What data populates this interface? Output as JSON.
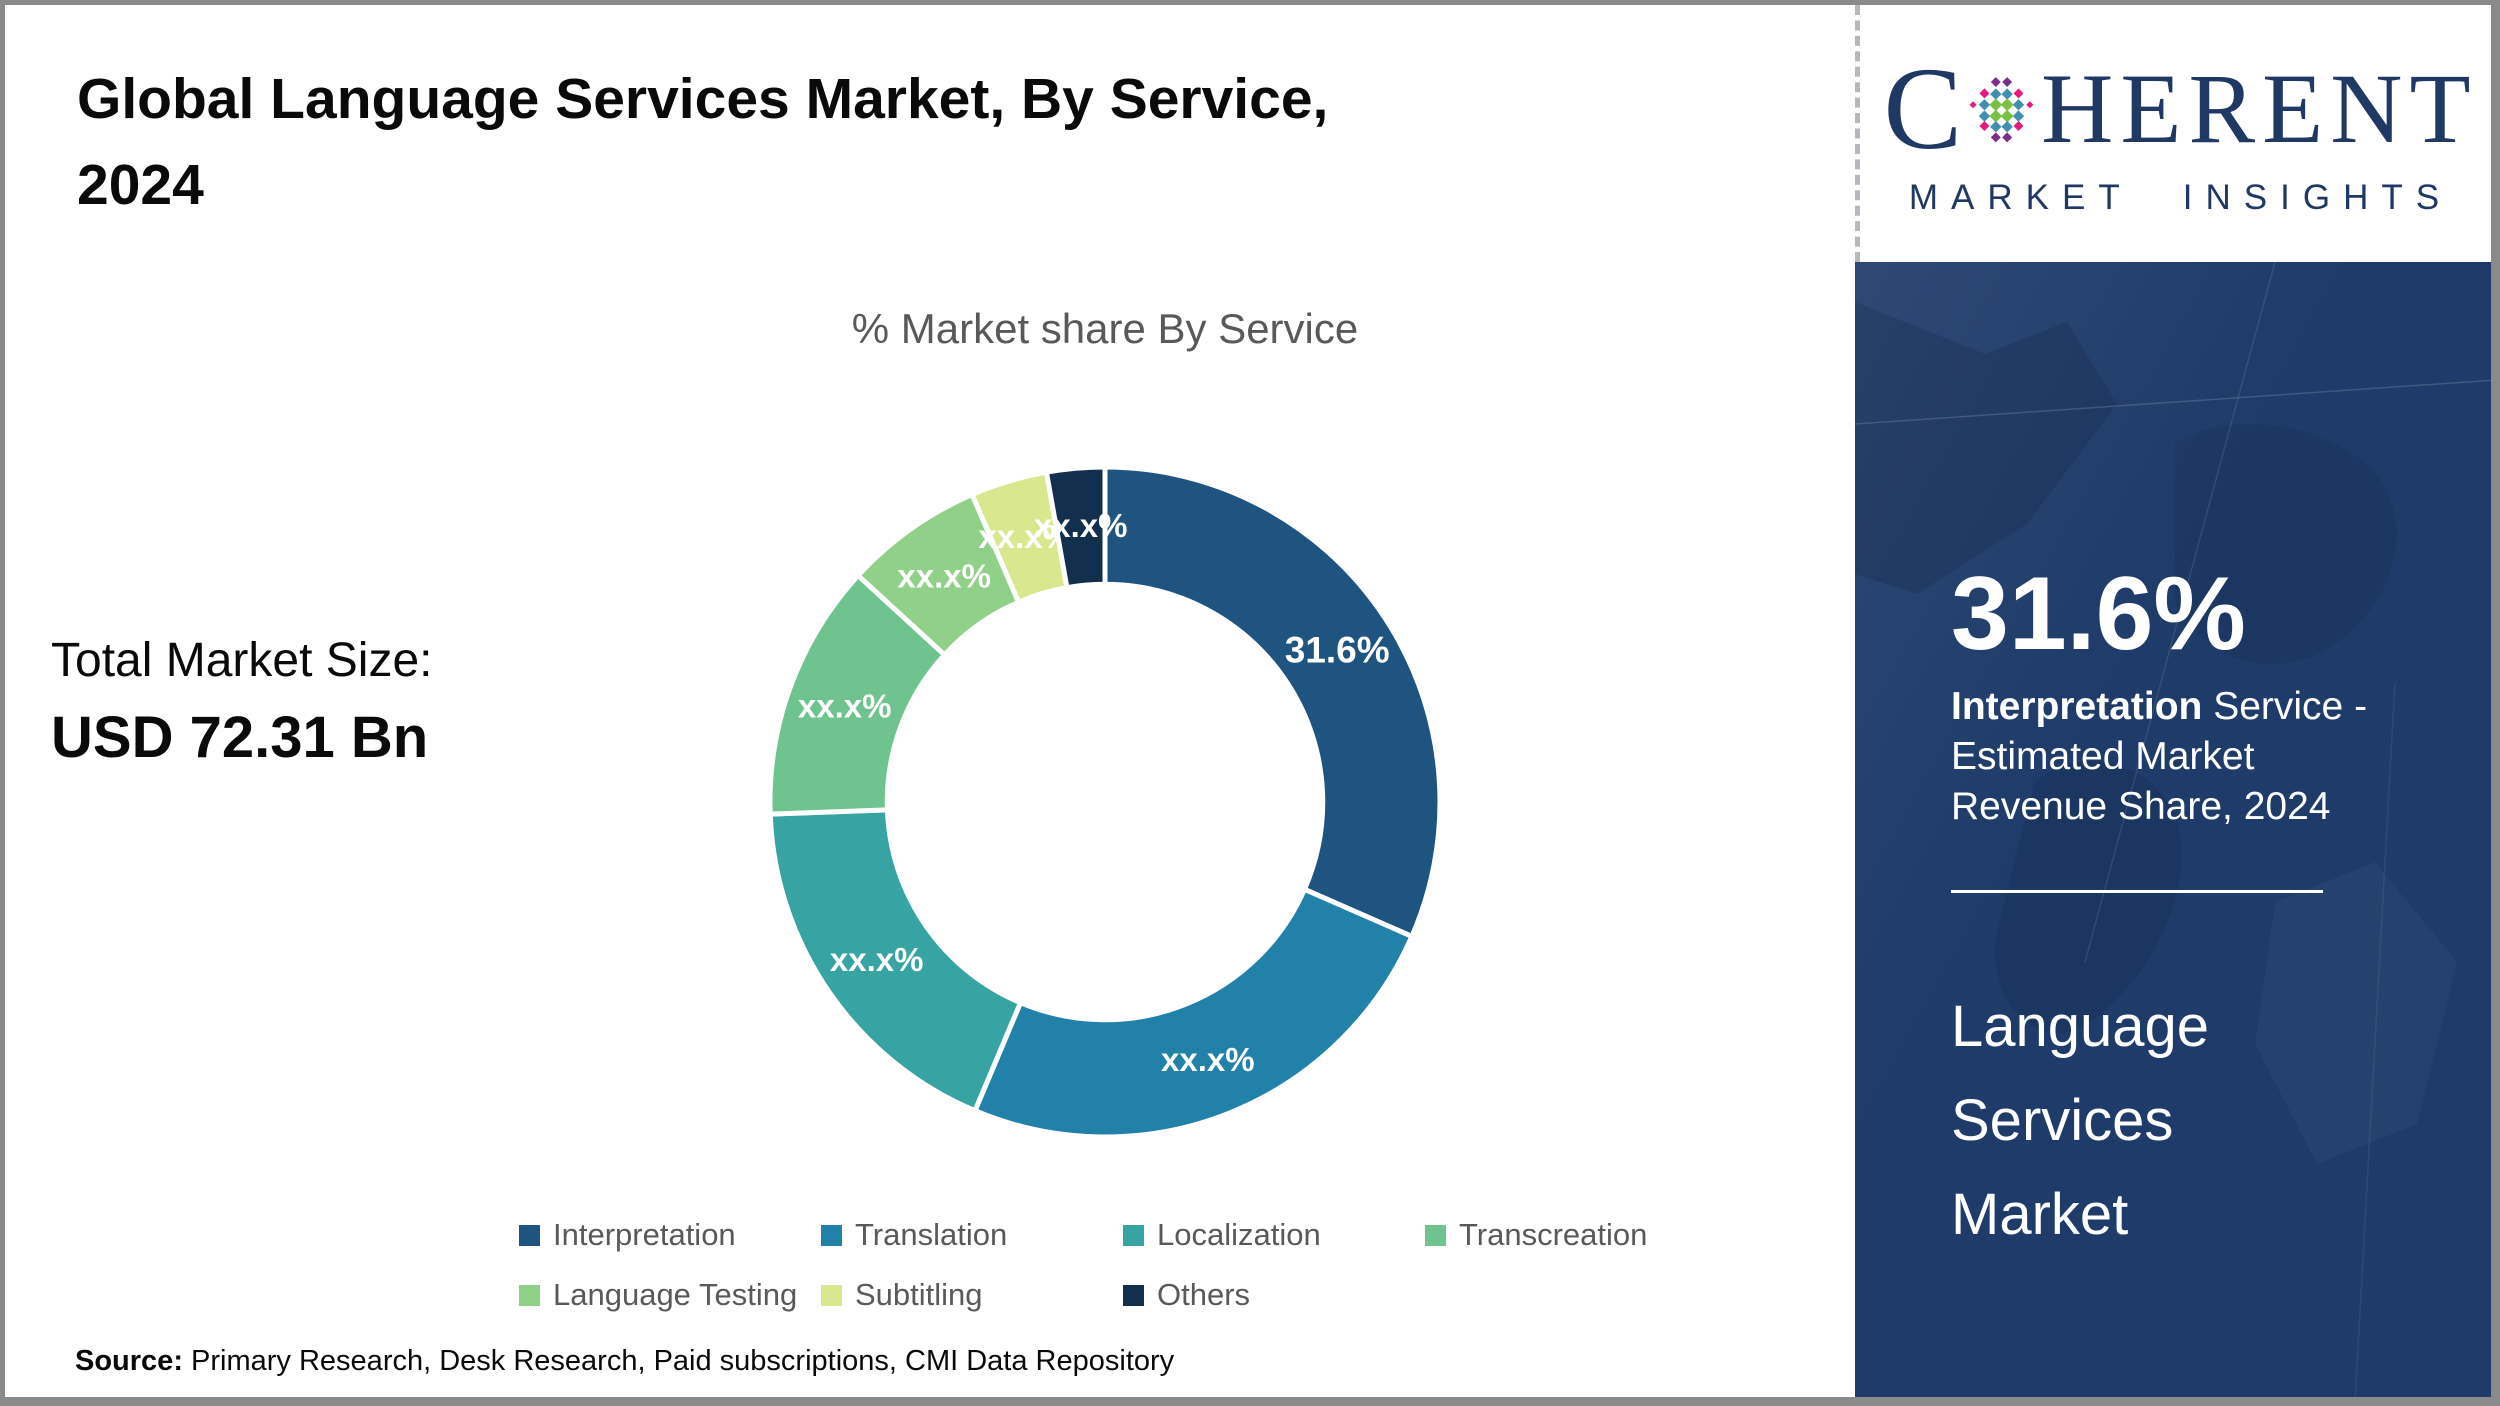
{
  "header": {
    "title_line1": "Global Language Services Market, By Service,",
    "title_line2": "2024"
  },
  "chart_section": {
    "subtitle": "% Market share By Service",
    "total_label": "Total Market Size:",
    "total_value": "USD 72.31 Bn"
  },
  "chart_data": {
    "type": "pie",
    "subtype": "donut",
    "title": "% Market share By Service",
    "categories": [
      "Interpretation",
      "Translation",
      "Localization",
      "Transcreation",
      "Language Testing",
      "Subtitling",
      "Others"
    ],
    "values": [
      31.6,
      24.8,
      18.1,
      12.4,
      6.7,
      3.7,
      2.8
    ],
    "displayed_labels": [
      "31.6%",
      "xx.x%",
      "xx.x%",
      "xx.x%",
      "xx.x%",
      "xx.x%",
      "xx.x%"
    ],
    "value_note": "Only Interpretation share (31.6%) is disclosed; remaining slice labels are masked as xx.x% in the image, values estimated from arc angles",
    "colors": [
      "#1F5480",
      "#2181A9",
      "#38A3A3",
      "#6EC38E",
      "#90D089",
      "#D9E88F",
      "#132F4E"
    ],
    "donut_hole_ratio": 0.65,
    "start_angle_deg": 0,
    "direction": "clockwise",
    "legend_position": "bottom",
    "label_color": "#ffffff"
  },
  "sidebar": {
    "highlight_percent": "31.6%",
    "highlight_line1_bold": "Interpretation",
    "highlight_line1_rest": " Service -",
    "highlight_line2": "Estimated Market",
    "highlight_line3": "Revenue Share, 2024",
    "market_name": "Language Services Market",
    "background_color": "#1E3B69"
  },
  "logo": {
    "brand_c": "C",
    "brand_rest": "HERENT",
    "subtext": "MARKET INSIGHTS",
    "brand_color": "#1F3864"
  },
  "source": {
    "prefix": "Source:",
    "text": " Primary Research, Desk Research, Paid subscriptions, CMI Data Repository"
  },
  "colors": {
    "legend_text": "#595959",
    "subtitle_text": "#595959",
    "sidebar_bg": "#1E3B69"
  }
}
